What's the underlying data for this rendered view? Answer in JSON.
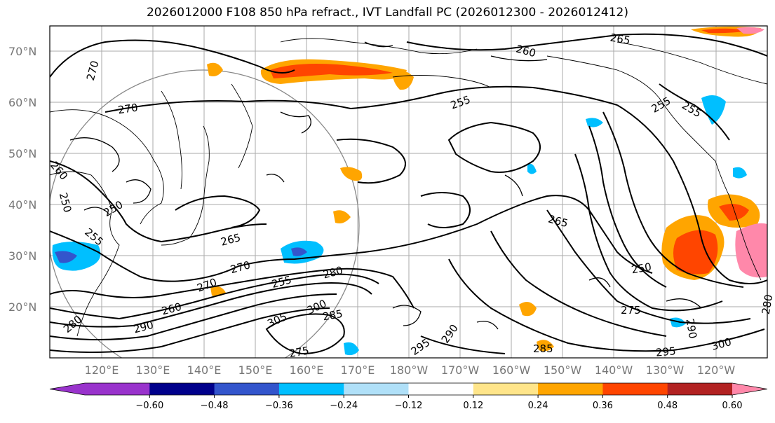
{
  "title": "2026012000 F108 850 hPa refract., IVT Landfall PC (2026012300 - 2026012412)",
  "map": {
    "lat_labels": [
      "70°N",
      "60°N",
      "50°N",
      "40°N",
      "30°N",
      "20°N"
    ],
    "lon_labels": [
      "120°E",
      "130°E",
      "140°E",
      "150°E",
      "160°E",
      "170°E",
      "180°W",
      "170°W",
      "160°W",
      "150°W",
      "140°W",
      "130°W",
      "120°W"
    ],
    "contour_labels": [
      "265",
      "260",
      "270",
      "270",
      "255",
      "255",
      "255",
      "260",
      "250",
      "250",
      "255",
      "265",
      "270",
      "270",
      "280",
      "260",
      "255",
      "265",
      "250",
      "275",
      "290",
      "280",
      "305",
      "300",
      "285",
      "275",
      "295",
      "290",
      "285",
      "295",
      "300",
      "280",
      "290"
    ]
  },
  "colorbar": {
    "ticks": [
      "−0.60",
      "−0.48",
      "−0.36",
      "−0.24",
      "−0.12",
      "0.12",
      "0.24",
      "0.36",
      "0.48",
      "0.60"
    ],
    "colors": [
      "#9933cc",
      "#00008b",
      "#3355cc",
      "#00bfff",
      "#b0e0f8",
      "#ffffff",
      "#ffe58a",
      "#ffa500",
      "#ff4500",
      "#b22222",
      "#ff88aa",
      "#ff88aa"
    ]
  }
}
